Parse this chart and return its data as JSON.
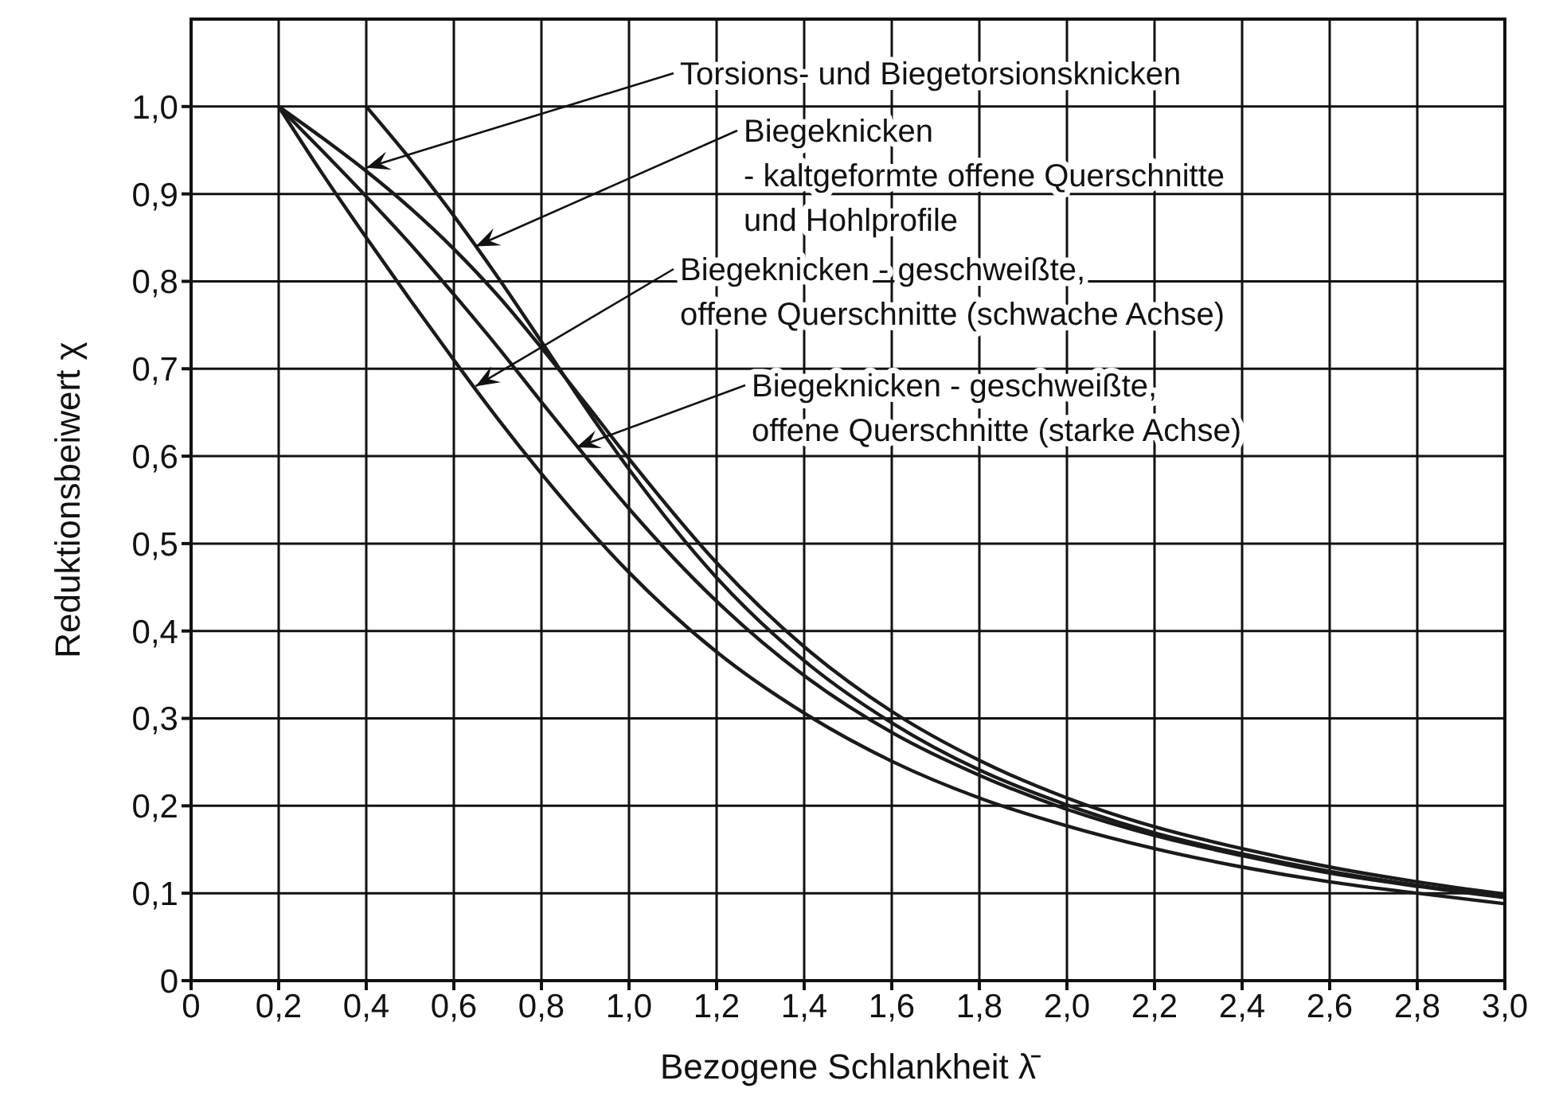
{
  "chart_data": {
    "type": "line",
    "xlabel": "Bezogene Schlankheit λ̄",
    "ylabel": "Reduktionsbeiwert χ",
    "x": [
      0.2,
      0.3,
      0.4,
      0.5,
      0.6,
      0.7,
      0.8,
      0.9,
      1.0,
      1.2,
      1.4,
      1.6,
      1.8,
      2.0,
      2.2,
      2.4,
      2.6,
      2.8,
      3.0
    ],
    "series": [
      {
        "color": "#1a1a1a",
        "x": [
          0.4,
          0.5,
          0.6,
          0.7,
          0.8,
          0.9,
          1.0,
          1.2,
          1.4,
          1.6,
          1.8,
          2.0,
          2.2,
          2.4,
          2.6,
          2.8,
          3.0
        ],
        "values": [
          1,
          0.94,
          0.875,
          0.805,
          0.731,
          0.656,
          0.585,
          0.461,
          0.366,
          0.295,
          0.241,
          0.201,
          0.169,
          0.145,
          0.125,
          0.109,
          0.096
        ]
      },
      {
        "color": "#1a1a1a",
        "values": [
          1,
          0.964,
          0.926,
          0.884,
          0.837,
          0.784,
          0.724,
          0.661,
          0.597,
          0.478,
          0.382,
          0.308,
          0.252,
          0.209,
          0.176,
          0.151,
          0.13,
          0.113,
          0.099
        ]
      },
      {
        "color": "#1a1a1a",
        "values": [
          1,
          0.949,
          0.897,
          0.843,
          0.785,
          0.725,
          0.662,
          0.6,
          0.54,
          0.434,
          0.349,
          0.284,
          0.235,
          0.196,
          0.166,
          0.143,
          0.123,
          0.108,
          0.095
        ]
      },
      {
        "color": "#1a1a1a",
        "values": [
          1,
          0.923,
          0.85,
          0.779,
          0.71,
          0.643,
          0.58,
          0.521,
          0.467,
          0.376,
          0.306,
          0.251,
          0.209,
          0.177,
          0.151,
          0.13,
          0.113,
          0.1,
          0.088
        ]
      }
    ],
    "xlim": [
      0,
      3.0
    ],
    "ylim": [
      0,
      1.1
    ],
    "xticks": [
      0,
      {
        "value": 0.2,
        "label": "0,2"
      },
      {
        "value": 0.4,
        "label": "0,4"
      },
      {
        "value": 0.6,
        "label": "0,6"
      },
      {
        "value": 0.8,
        "label": "0,8"
      },
      {
        "value": 1.0,
        "label": "1,0"
      },
      {
        "value": 1.2,
        "label": "1,2"
      },
      {
        "value": 1.4,
        "label": "1,4"
      },
      {
        "value": 1.6,
        "label": "1,6"
      },
      {
        "value": 1.8,
        "label": "1,8"
      },
      {
        "value": 2.0,
        "label": "2,0"
      },
      {
        "value": 2.2,
        "label": "2,2"
      },
      {
        "value": 2.4,
        "label": "2,4"
      },
      {
        "value": 2.6,
        "label": "2,6"
      },
      {
        "value": 2.8,
        "label": "2,8"
      },
      {
        "value": 3.0,
        "label": "3,0"
      }
    ],
    "yticks": [
      0,
      {
        "value": 0.1,
        "label": "0,1"
      },
      {
        "value": 0.2,
        "label": "0,2"
      },
      {
        "value": 0.3,
        "label": "0,3"
      },
      {
        "value": 0.4,
        "label": "0,4"
      },
      {
        "value": 0.5,
        "label": "0,5"
      },
      {
        "value": 0.6,
        "label": "0,6"
      },
      {
        "value": 0.7,
        "label": "0,7"
      },
      {
        "value": 0.8,
        "label": "0,8"
      },
      {
        "value": 0.9,
        "label": "0,9"
      },
      {
        "value": 1.0,
        "label": "1,0"
      }
    ],
    "grid": true,
    "annotations": [
      {
        "text": "Torsions- und Biegetorsionsknicken",
        "x": 0.4,
        "y": 0.93
      },
      {
        "text": "Biegeknicken\n- kaltgeformte offene Querschnitte\nund Hohlprofile",
        "x": 0.65,
        "y": 0.84
      },
      {
        "text": "Biegeknicken - geschweißte,\noffene Querschnitte (schwache Achse)",
        "x": 0.65,
        "y": 0.68
      },
      {
        "text": "Biegeknicken - geschweißte,\noffene Querschnitte (starke Achse)",
        "x": 0.88,
        "y": 0.61
      }
    ]
  }
}
